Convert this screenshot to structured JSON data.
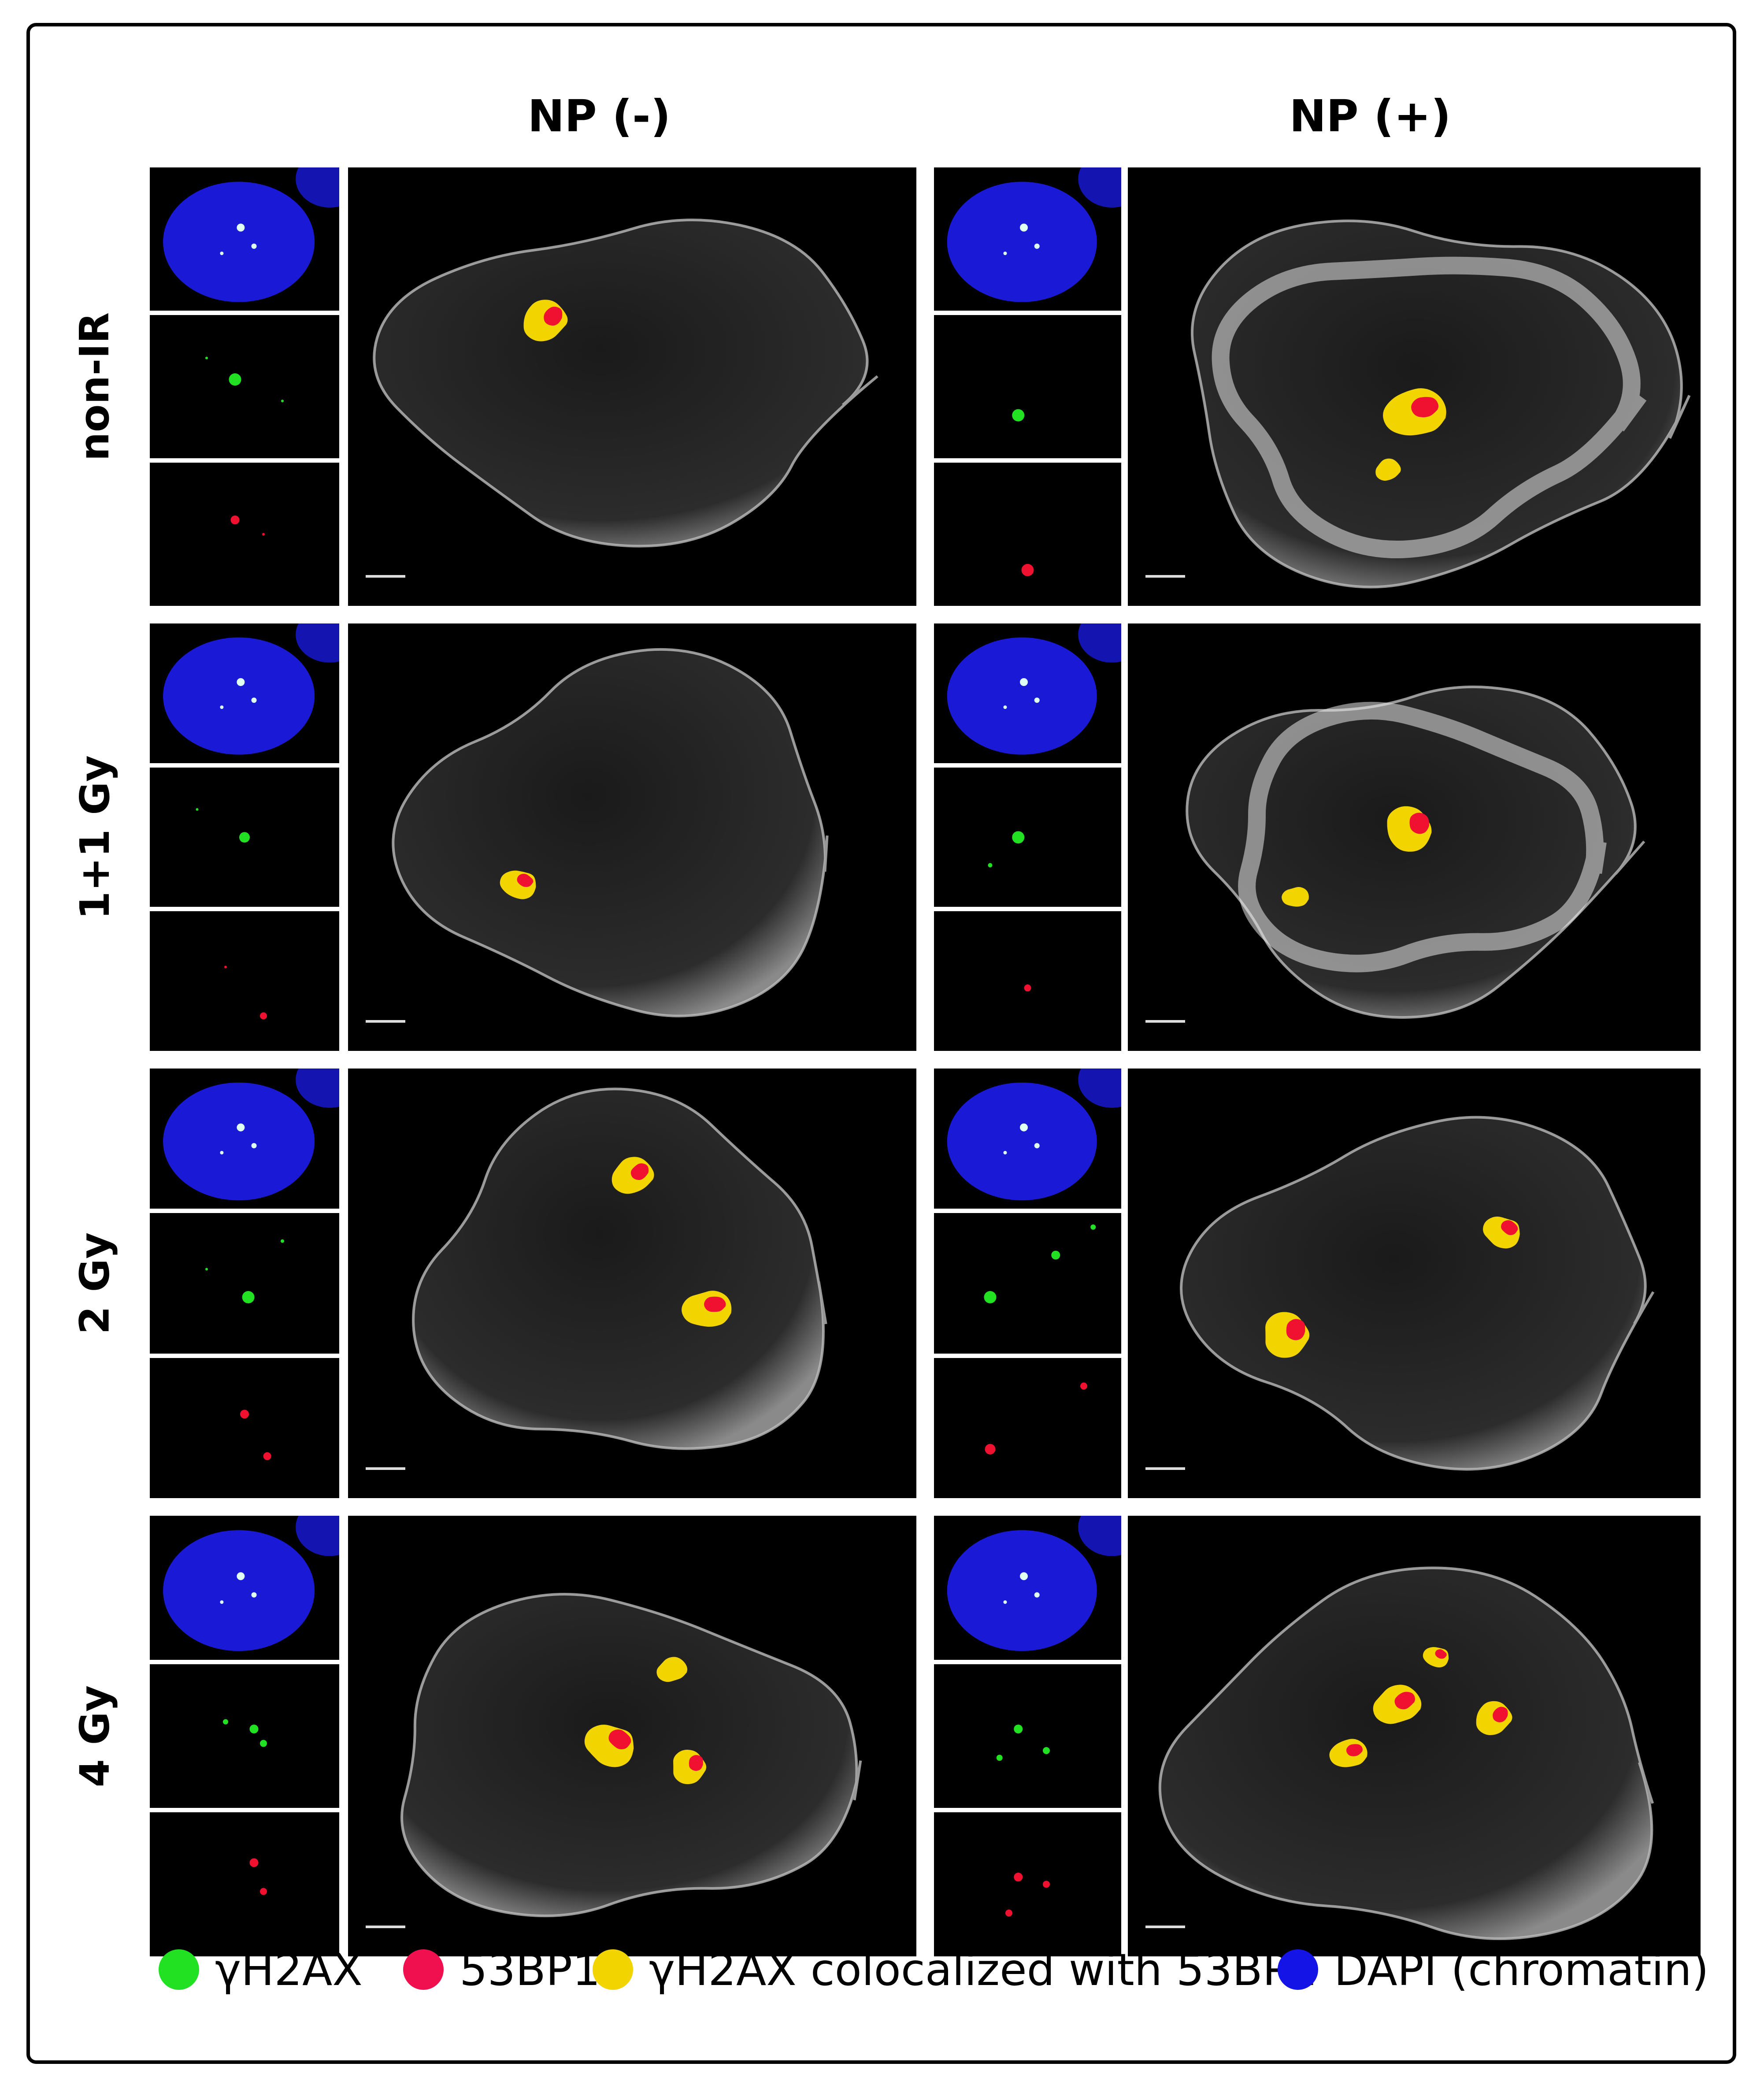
{
  "columns": [
    {
      "title": "NP (-)"
    },
    {
      "title": "NP (+)"
    }
  ],
  "rows": [
    {
      "label": "non-IR"
    },
    {
      "label": "1+1 Gy"
    },
    {
      "label": "2 Gy"
    },
    {
      "label": "4 Gy"
    }
  ],
  "legend": [
    {
      "label": "γH2AX",
      "color": "#22e022"
    },
    {
      "label": "53BP1",
      "color": "#f01050"
    },
    {
      "label": "γH2AX colocalized with 53BP1",
      "color": "#f2d400"
    },
    {
      "label": "DAPI (chromatin)",
      "color": "#1414e6"
    }
  ],
  "colors": {
    "background": "#000000",
    "dapi": "#1a1ad6",
    "green": "#22e022",
    "red": "#f01030",
    "yellow": "#f2d400"
  }
}
